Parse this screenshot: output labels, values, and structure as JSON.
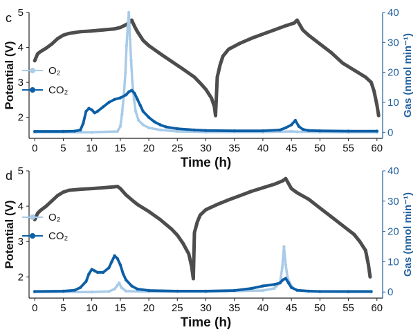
{
  "chart_data": [
    {
      "panel": "c",
      "type": "line",
      "xlabel": "Time (h)",
      "ylabel_left": "Potential (V)",
      "ylabel_right": "Gas (nmol min⁻¹)",
      "xlim": [
        -1,
        61
      ],
      "ylim_left": [
        1.4,
        5
      ],
      "ylim_right": [
        -2,
        40
      ],
      "xticks": [
        0,
        5,
        10,
        15,
        20,
        25,
        30,
        35,
        40,
        45,
        50,
        55,
        60
      ],
      "yticks_left": [
        2,
        3,
        4,
        5
      ],
      "yticks_right": [
        0,
        10,
        20,
        30,
        40
      ],
      "legend": [
        "O₂",
        "CO₂"
      ],
      "series": [
        {
          "name": "Potential",
          "axis": "left",
          "color": "#4d4d4d",
          "x": [
            0,
            0.5,
            1,
            2,
            3,
            4,
            5,
            6,
            8,
            10,
            12,
            14,
            15,
            16,
            16.5,
            17,
            17.5,
            18,
            19,
            20,
            22,
            24,
            26,
            28,
            29,
            30,
            31,
            31.5,
            31.7,
            32,
            32.5,
            33,
            34,
            36,
            38,
            40,
            42,
            44,
            45.5,
            46,
            47,
            48,
            50,
            52,
            54,
            56,
            58,
            59,
            59.5,
            60,
            60.3
          ],
          "y": [
            3.62,
            3.82,
            3.88,
            3.98,
            4.1,
            4.25,
            4.35,
            4.4,
            4.45,
            4.47,
            4.5,
            4.53,
            4.57,
            4.65,
            4.7,
            4.78,
            4.6,
            4.45,
            4.2,
            4.05,
            3.82,
            3.6,
            3.38,
            3.15,
            2.98,
            2.8,
            2.55,
            2.3,
            2.05,
            3.15,
            3.5,
            3.75,
            3.95,
            4.12,
            4.26,
            4.38,
            4.5,
            4.62,
            4.7,
            4.78,
            4.5,
            4.35,
            4.1,
            3.85,
            3.55,
            3.35,
            3.15,
            3.0,
            2.75,
            2.35,
            2.05
          ]
        },
        {
          "name": "O₂",
          "axis": "right",
          "color": "#a9cbe8",
          "x": [
            0,
            10,
            14.5,
            15,
            15.3,
            15.6,
            15.9,
            16.1,
            16.3,
            16.5,
            16.7,
            16.9,
            17.1,
            17.4,
            17.7,
            18.2,
            19,
            20,
            22,
            25,
            30,
            40,
            45,
            46,
            50,
            55,
            60
          ],
          "y": [
            0,
            0,
            0.3,
            2,
            6,
            12,
            20,
            29,
            35,
            40,
            31,
            24,
            17,
            11,
            7,
            4,
            2.5,
            1.5,
            0.8,
            0.3,
            0.1,
            0.1,
            0.3,
            0.2,
            0.1,
            0,
            0
          ]
        },
        {
          "name": "CO₂",
          "axis": "right",
          "color": "#0c5fa6",
          "x": [
            0,
            5,
            7,
            8,
            8.5,
            9,
            9.5,
            10,
            10.5,
            11,
            12,
            13,
            14,
            15,
            16,
            16.5,
            17,
            17.5,
            18,
            18.5,
            19,
            20,
            21,
            22,
            23,
            25,
            28,
            30,
            35,
            40,
            43,
            44,
            45,
            45.7,
            46.3,
            47,
            48,
            50,
            55,
            60
          ],
          "y": [
            0.3,
            0.3,
            0.4,
            0.8,
            3,
            7,
            8,
            7.5,
            6.5,
            7,
            8.5,
            10,
            11,
            11.5,
            12.5,
            13.5,
            14,
            13,
            11,
            9,
            7,
            5,
            3.5,
            2.5,
            1.8,
            1.2,
            0.8,
            0.6,
            0.5,
            0.5,
            0.8,
            1.5,
            2.5,
            4,
            2,
            1,
            0.6,
            0.5,
            0.4,
            0.4
          ]
        }
      ]
    },
    {
      "panel": "d",
      "type": "line",
      "xlabel": "Time (h)",
      "ylabel_left": "Potential (V)",
      "ylabel_right": "Gas (nmol min⁻¹)",
      "xlim": [
        -1,
        61
      ],
      "ylim_left": [
        1.4,
        5
      ],
      "ylim_right": [
        -2,
        40
      ],
      "xticks": [
        0,
        5,
        10,
        15,
        20,
        25,
        30,
        35,
        40,
        45,
        50,
        55,
        60
      ],
      "yticks_left": [
        2,
        3,
        4,
        5
      ],
      "yticks_right": [
        0,
        10,
        20,
        30,
        40
      ],
      "legend": [
        "O₂",
        "CO₂"
      ],
      "series": [
        {
          "name": "Potential",
          "axis": "left",
          "color": "#4d4d4d",
          "x": [
            0,
            0.5,
            1,
            2,
            3,
            4,
            5,
            6,
            8,
            10,
            12,
            14,
            14.5,
            15,
            16,
            17,
            18,
            20,
            22,
            24,
            25,
            26,
            27,
            27.5,
            27.8,
            28,
            28.5,
            29,
            30,
            32,
            34,
            36,
            38,
            40,
            42,
            43.5,
            44,
            45,
            46,
            48,
            50,
            52,
            54,
            56,
            57,
            58,
            58.5,
            58.8
          ],
          "y": [
            3.62,
            3.8,
            3.88,
            4.0,
            4.15,
            4.3,
            4.4,
            4.45,
            4.48,
            4.5,
            4.52,
            4.55,
            4.56,
            4.5,
            4.32,
            4.18,
            4.05,
            3.85,
            3.62,
            3.35,
            3.18,
            2.95,
            2.65,
            2.3,
            1.95,
            3.25,
            3.55,
            3.75,
            3.9,
            4.05,
            4.18,
            4.3,
            4.42,
            4.52,
            4.62,
            4.72,
            4.78,
            4.5,
            4.38,
            4.2,
            3.95,
            3.7,
            3.45,
            3.2,
            3.0,
            2.75,
            2.35,
            2.0
          ]
        },
        {
          "name": "O₂",
          "axis": "right",
          "color": "#a9cbe8",
          "x": [
            0,
            10,
            13,
            14,
            14.4,
            14.8,
            15.2,
            16,
            20,
            30,
            40,
            42,
            43,
            43.4,
            43.7,
            44,
            44.3,
            44.7,
            45.2,
            46,
            50,
            55,
            59
          ],
          "y": [
            0,
            0,
            0.2,
            1,
            2,
            3,
            1.5,
            0.3,
            0.1,
            0.1,
            0.5,
            1.2,
            3,
            8,
            15,
            9,
            5,
            3,
            1.5,
            0.5,
            0.1,
            0,
            0
          ]
        },
        {
          "name": "CO₂",
          "axis": "right",
          "color": "#0c5fa6",
          "x": [
            0,
            5,
            7,
            8,
            9,
            9.5,
            10,
            10.5,
            11,
            12,
            13,
            13.5,
            14,
            14.5,
            15,
            15.5,
            16,
            17,
            18,
            20,
            25,
            30,
            35,
            38,
            40,
            42,
            43,
            43.5,
            44,
            44.5,
            45,
            46,
            48,
            50,
            55,
            59
          ],
          "y": [
            0.2,
            0.3,
            0.6,
            1.5,
            3.5,
            6,
            7.5,
            7,
            6.5,
            6.5,
            8,
            10,
            12,
            11,
            9,
            6,
            4,
            2,
            1,
            0.5,
            0.3,
            0.3,
            0.5,
            1.2,
            2,
            2.5,
            3,
            4,
            4.5,
            3,
            1.5,
            0.6,
            0.3,
            0.2,
            0.2,
            0.2
          ]
        }
      ]
    }
  ]
}
